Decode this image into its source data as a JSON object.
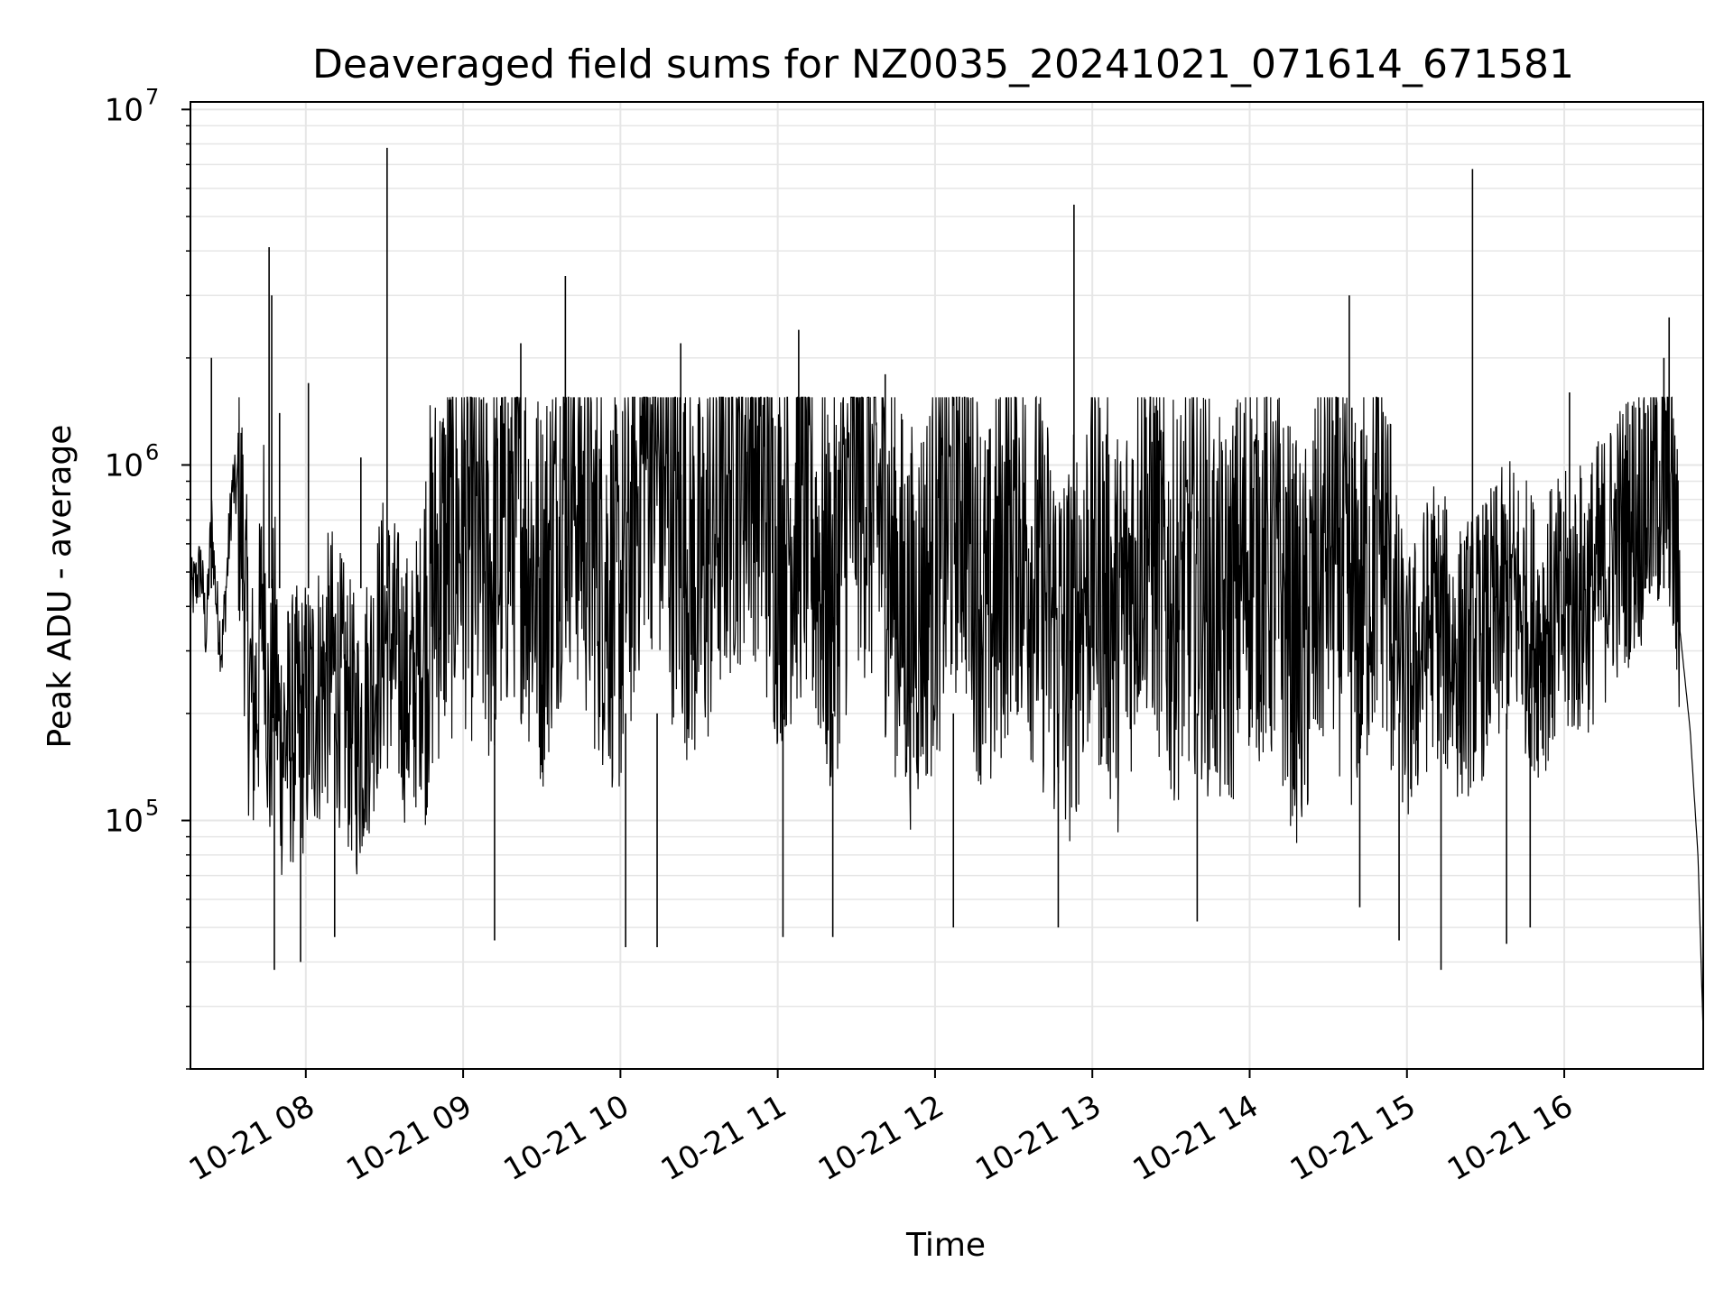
{
  "chart_data": {
    "type": "line",
    "title": "Deaveraged field sums for NZ0035_20241021_071614_671581",
    "xlabel": "Time",
    "ylabel": "Peak ADU - average",
    "y_scale": "log",
    "ylim": [
      20000,
      10500000
    ],
    "xlim": [
      "2024-10-21 07:16",
      "2024-10-21 16:53"
    ],
    "grid": "major and minor",
    "line_color": "#000000",
    "x_tick_labels": [
      "10-21 08",
      "10-21 09",
      "10-21 10",
      "10-21 11",
      "10-21 12",
      "10-21 13",
      "10-21 14",
      "10-21 15",
      "10-21 16"
    ],
    "x_tick_times": [
      "2024-10-21 08:00",
      "2024-10-21 09:00",
      "2024-10-21 10:00",
      "2024-10-21 11:00",
      "2024-10-21 12:00",
      "2024-10-21 13:00",
      "2024-10-21 14:00",
      "2024-10-21 15:00",
      "2024-10-21 16:00"
    ],
    "y_ticks": [
      {
        "base": "10",
        "exp": "5",
        "value": 100000
      },
      {
        "base": "10",
        "exp": "6",
        "value": 1000000
      },
      {
        "base": "10",
        "exp": "7",
        "value": 10000000
      }
    ],
    "series": [
      {
        "x": [
          "2024-10-21 07:16",
          "2024-10-21 07:18",
          "2024-10-21 07:20",
          "2024-10-21 07:22",
          "2024-10-21 07:24",
          "2024-10-21 07:26",
          "2024-10-21 07:28",
          "2024-10-21 07:30",
          "2024-10-21 07:32",
          "2024-10-21 07:34",
          "2024-10-21 07:36",
          "2024-10-21 07:38",
          "2024-10-21 07:40",
          "2024-10-21 07:42",
          "2024-10-21 07:44",
          "2024-10-21 07:46",
          "2024-10-21 07:48",
          "2024-10-21 07:50",
          "2024-10-21 08:00",
          "2024-10-21 08:10",
          "2024-10-21 08:20",
          "2024-10-21 08:30",
          "2024-10-21 08:40",
          "2024-10-21 08:50",
          "2024-10-21 09:00",
          "2024-10-21 09:10",
          "2024-10-21 09:20",
          "2024-10-21 09:30",
          "2024-10-21 09:40",
          "2024-10-21 09:50",
          "2024-10-21 10:00",
          "2024-10-21 10:10",
          "2024-10-21 10:20",
          "2024-10-21 10:30",
          "2024-10-21 10:40",
          "2024-10-21 10:50",
          "2024-10-21 11:00",
          "2024-10-21 11:10",
          "2024-10-21 11:20",
          "2024-10-21 11:30",
          "2024-10-21 11:40",
          "2024-10-21 11:50",
          "2024-10-21 12:00",
          "2024-10-21 12:10",
          "2024-10-21 12:20",
          "2024-10-21 12:30",
          "2024-10-21 12:40",
          "2024-10-21 12:50",
          "2024-10-21 13:00",
          "2024-10-21 13:10",
          "2024-10-21 13:20",
          "2024-10-21 13:30",
          "2024-10-21 13:40",
          "2024-10-21 13:50",
          "2024-10-21 14:00",
          "2024-10-21 14:10",
          "2024-10-21 14:20",
          "2024-10-21 14:30",
          "2024-10-21 14:40",
          "2024-10-21 14:50",
          "2024-10-21 15:00",
          "2024-10-21 15:10",
          "2024-10-21 15:20",
          "2024-10-21 15:30",
          "2024-10-21 15:40",
          "2024-10-21 15:50",
          "2024-10-21 16:00",
          "2024-10-21 16:10",
          "2024-10-21 16:20",
          "2024-10-21 16:30",
          "2024-10-21 16:40",
          "2024-10-21 16:44",
          "2024-10-21 16:48",
          "2024-10-21 16:51",
          "2024-10-21 16:53"
        ],
        "y": [
          430000,
          460000,
          520000,
          330000,
          700000,
          400000,
          300000,
          500000,
          880000,
          820000,
          560000,
          240000,
          180000,
          230000,
          520000,
          130000,
          300000,
          150000,
          180000,
          250000,
          150000,
          320000,
          200000,
          450000,
          600000,
          420000,
          700000,
          380000,
          900000,
          500000,
          350000,
          1100000,
          600000,
          400000,
          750000,
          1000000,
          500000,
          700000,
          350000,
          900000,
          600000,
          300000,
          450000,
          800000,
          300000,
          650000,
          400000,
          250000,
          500000,
          300000,
          650000,
          350000,
          450000,
          300000,
          500000,
          420000,
          250000,
          550000,
          320000,
          600000,
          200000,
          350000,
          250000,
          300000,
          400000,
          300000,
          350000,
          400000,
          550000,
          700000,
          900000,
          350000,
          180000,
          80000,
          25000
        ]
      }
    ],
    "spikes": [
      {
        "x": "2024-10-21 07:24",
        "y": 2000000
      },
      {
        "x": "2024-10-21 07:46",
        "y": 4100000
      },
      {
        "x": "2024-10-21 07:47",
        "y": 3000000
      },
      {
        "x": "2024-10-21 07:50",
        "y": 1400000
      },
      {
        "x": "2024-10-21 08:01",
        "y": 1700000
      },
      {
        "x": "2024-10-21 08:21",
        "y": 1050000
      },
      {
        "x": "2024-10-21 08:31",
        "y": 7800000
      },
      {
        "x": "2024-10-21 09:22",
        "y": 2200000
      },
      {
        "x": "2024-10-21 09:39",
        "y": 3400000
      },
      {
        "x": "2024-10-21 10:23",
        "y": 2200000
      },
      {
        "x": "2024-10-21 11:08",
        "y": 2400000
      },
      {
        "x": "2024-10-21 11:41",
        "y": 1800000
      },
      {
        "x": "2024-10-21 12:53",
        "y": 5400000
      },
      {
        "x": "2024-10-21 14:38",
        "y": 3000000
      },
      {
        "x": "2024-10-21 14:39",
        "y": 1450000
      },
      {
        "x": "2024-10-21 15:25",
        "y": 6800000
      },
      {
        "x": "2024-10-21 16:02",
        "y": 1600000
      },
      {
        "x": "2024-10-21 16:31",
        "y": 1400000
      },
      {
        "x": "2024-10-21 16:40",
        "y": 2600000
      },
      {
        "x": "2024-10-21 16:38",
        "y": 2000000
      }
    ],
    "dips": [
      {
        "x": "2024-10-21 07:48",
        "y": 38000
      },
      {
        "x": "2024-10-21 07:58",
        "y": 40000
      },
      {
        "x": "2024-10-21 08:11",
        "y": 47000
      },
      {
        "x": "2024-10-21 09:12",
        "y": 46000
      },
      {
        "x": "2024-10-21 10:02",
        "y": 44000
      },
      {
        "x": "2024-10-21 10:14",
        "y": 44000
      },
      {
        "x": "2024-10-21 11:02",
        "y": 47000
      },
      {
        "x": "2024-10-21 11:21",
        "y": 47000
      },
      {
        "x": "2024-10-21 12:07",
        "y": 50000
      },
      {
        "x": "2024-10-21 12:47",
        "y": 50000
      },
      {
        "x": "2024-10-21 13:40",
        "y": 52000
      },
      {
        "x": "2024-10-21 14:42",
        "y": 57000
      },
      {
        "x": "2024-10-21 14:57",
        "y": 46000
      },
      {
        "x": "2024-10-21 15:13",
        "y": 38000
      },
      {
        "x": "2024-10-21 15:38",
        "y": 45000
      },
      {
        "x": "2024-10-21 15:47",
        "y": 50000
      }
    ]
  }
}
